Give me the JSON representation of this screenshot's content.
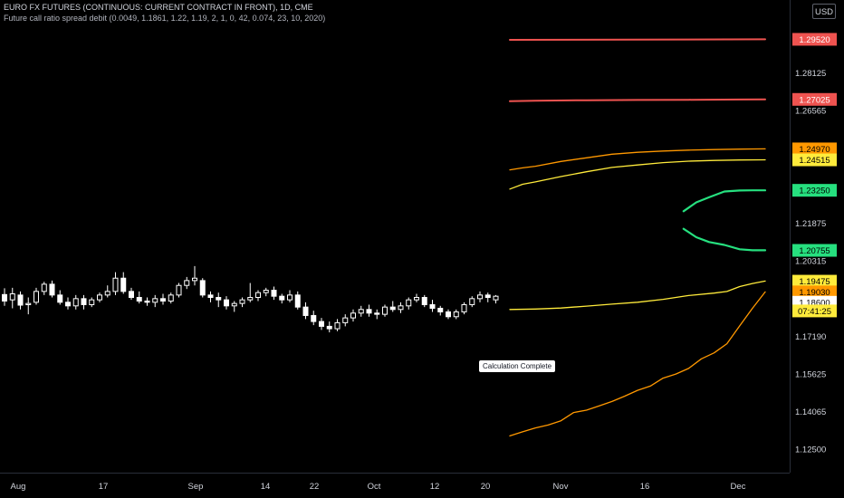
{
  "header": {
    "title": "EURO FX FUTURES (CONTINUOUS: CURRENT CONTRACT IN FRONT), 1D, CME",
    "study": "Future call ratio spread debit (0.0049, 1.1861, 1.22, 1.19, 2, 1, 0, 42, 0.074, 23, 10, 2020)"
  },
  "currency_button": "USD",
  "tooltip": "Calculation Complete",
  "chart_data": {
    "type": "candlestick",
    "ylim": [
      1.1205,
      1.2995
    ],
    "y_ticks": [
      "1.28125",
      "1.26565",
      "1.21875",
      "1.20315",
      "1.17190",
      "1.15625",
      "1.14065",
      "1.12500"
    ],
    "x_ticks": [
      "Aug",
      "17",
      "Sep",
      "14",
      "22",
      "Oct",
      "12",
      "20",
      "Nov",
      "16",
      "Dec"
    ],
    "candles": [
      {
        "o": 1.1892,
        "h": 1.1918,
        "l": 1.1845,
        "c": 1.1865
      },
      {
        "o": 1.187,
        "h": 1.192,
        "l": 1.1835,
        "c": 1.1895
      },
      {
        "o": 1.189,
        "h": 1.1905,
        "l": 1.183,
        "c": 1.1848
      },
      {
        "o": 1.185,
        "h": 1.188,
        "l": 1.181,
        "c": 1.1855
      },
      {
        "o": 1.186,
        "h": 1.192,
        "l": 1.185,
        "c": 1.1905
      },
      {
        "o": 1.1905,
        "h": 1.1945,
        "l": 1.189,
        "c": 1.1935
      },
      {
        "o": 1.1935,
        "h": 1.195,
        "l": 1.188,
        "c": 1.189
      },
      {
        "o": 1.189,
        "h": 1.191,
        "l": 1.185,
        "c": 1.186
      },
      {
        "o": 1.186,
        "h": 1.188,
        "l": 1.183,
        "c": 1.1845
      },
      {
        "o": 1.1845,
        "h": 1.189,
        "l": 1.183,
        "c": 1.1875
      },
      {
        "o": 1.1875,
        "h": 1.189,
        "l": 1.183,
        "c": 1.185
      },
      {
        "o": 1.185,
        "h": 1.188,
        "l": 1.184,
        "c": 1.187
      },
      {
        "o": 1.187,
        "h": 1.19,
        "l": 1.186,
        "c": 1.189
      },
      {
        "o": 1.189,
        "h": 1.193,
        "l": 1.188,
        "c": 1.1905
      },
      {
        "o": 1.1905,
        "h": 1.1985,
        "l": 1.189,
        "c": 1.196
      },
      {
        "o": 1.196,
        "h": 1.1985,
        "l": 1.1895,
        "c": 1.1905
      },
      {
        "o": 1.1905,
        "h": 1.192,
        "l": 1.187,
        "c": 1.188
      },
      {
        "o": 1.188,
        "h": 1.1905,
        "l": 1.1855,
        "c": 1.1865
      },
      {
        "o": 1.1865,
        "h": 1.188,
        "l": 1.1845,
        "c": 1.186
      },
      {
        "o": 1.186,
        "h": 1.189,
        "l": 1.184,
        "c": 1.1875
      },
      {
        "o": 1.1875,
        "h": 1.1895,
        "l": 1.185,
        "c": 1.1865
      },
      {
        "o": 1.1865,
        "h": 1.19,
        "l": 1.1855,
        "c": 1.189
      },
      {
        "o": 1.189,
        "h": 1.194,
        "l": 1.188,
        "c": 1.193
      },
      {
        "o": 1.193,
        "h": 1.1965,
        "l": 1.1915,
        "c": 1.195
      },
      {
        "o": 1.195,
        "h": 1.201,
        "l": 1.193,
        "c": 1.196
      },
      {
        "o": 1.195,
        "h": 1.196,
        "l": 1.188,
        "c": 1.189
      },
      {
        "o": 1.189,
        "h": 1.1905,
        "l": 1.186,
        "c": 1.188
      },
      {
        "o": 1.188,
        "h": 1.19,
        "l": 1.184,
        "c": 1.187
      },
      {
        "o": 1.187,
        "h": 1.1885,
        "l": 1.183,
        "c": 1.1845
      },
      {
        "o": 1.1845,
        "h": 1.1865,
        "l": 1.182,
        "c": 1.1855
      },
      {
        "o": 1.1855,
        "h": 1.188,
        "l": 1.184,
        "c": 1.187
      },
      {
        "o": 1.187,
        "h": 1.194,
        "l": 1.186,
        "c": 1.188
      },
      {
        "o": 1.188,
        "h": 1.191,
        "l": 1.1865,
        "c": 1.19
      },
      {
        "o": 1.19,
        "h": 1.192,
        "l": 1.1885,
        "c": 1.191
      },
      {
        "o": 1.191,
        "h": 1.1925,
        "l": 1.187,
        "c": 1.1885
      },
      {
        "o": 1.1885,
        "h": 1.1895,
        "l": 1.1855,
        "c": 1.187
      },
      {
        "o": 1.187,
        "h": 1.191,
        "l": 1.186,
        "c": 1.189
      },
      {
        "o": 1.189,
        "h": 1.1905,
        "l": 1.183,
        "c": 1.184
      },
      {
        "o": 1.184,
        "h": 1.186,
        "l": 1.179,
        "c": 1.1805
      },
      {
        "o": 1.1805,
        "h": 1.1825,
        "l": 1.1765,
        "c": 1.178
      },
      {
        "o": 1.178,
        "h": 1.1795,
        "l": 1.1745,
        "c": 1.176
      },
      {
        "o": 1.176,
        "h": 1.178,
        "l": 1.1735,
        "c": 1.175
      },
      {
        "o": 1.175,
        "h": 1.179,
        "l": 1.174,
        "c": 1.1775
      },
      {
        "o": 1.1775,
        "h": 1.181,
        "l": 1.176,
        "c": 1.1795
      },
      {
        "o": 1.1795,
        "h": 1.183,
        "l": 1.178,
        "c": 1.1815
      },
      {
        "o": 1.1815,
        "h": 1.1845,
        "l": 1.18,
        "c": 1.183
      },
      {
        "o": 1.183,
        "h": 1.185,
        "l": 1.18,
        "c": 1.1815
      },
      {
        "o": 1.1815,
        "h": 1.183,
        "l": 1.179,
        "c": 1.181
      },
      {
        "o": 1.181,
        "h": 1.185,
        "l": 1.18,
        "c": 1.184
      },
      {
        "o": 1.184,
        "h": 1.1865,
        "l": 1.182,
        "c": 1.183
      },
      {
        "o": 1.183,
        "h": 1.186,
        "l": 1.1815,
        "c": 1.1845
      },
      {
        "o": 1.1845,
        "h": 1.188,
        "l": 1.183,
        "c": 1.187
      },
      {
        "o": 1.187,
        "h": 1.1895,
        "l": 1.186,
        "c": 1.188
      },
      {
        "o": 1.188,
        "h": 1.189,
        "l": 1.184,
        "c": 1.185
      },
      {
        "o": 1.185,
        "h": 1.187,
        "l": 1.182,
        "c": 1.1835
      },
      {
        "o": 1.1835,
        "h": 1.1845,
        "l": 1.1805,
        "c": 1.182
      },
      {
        "o": 1.182,
        "h": 1.183,
        "l": 1.179,
        "c": 1.18
      },
      {
        "o": 1.18,
        "h": 1.183,
        "l": 1.179,
        "c": 1.182
      },
      {
        "o": 1.182,
        "h": 1.186,
        "l": 1.181,
        "c": 1.185
      },
      {
        "o": 1.185,
        "h": 1.1885,
        "l": 1.184,
        "c": 1.1875
      },
      {
        "o": 1.1875,
        "h": 1.1905,
        "l": 1.186,
        "c": 1.189
      },
      {
        "o": 1.189,
        "h": 1.19,
        "l": 1.186,
        "c": 1.188
      },
      {
        "o": 1.187,
        "h": 1.189,
        "l": 1.1855,
        "c": 1.1885
      }
    ],
    "series": [
      {
        "color": "#ef5350",
        "width": 2,
        "label": "1.29520",
        "label_bg": "#ef5350",
        "label_fg": "#ffffff",
        "x": [
          0,
          1
        ],
        "y": [
          1.295,
          1.2952
        ]
      },
      {
        "color": "#ef5350",
        "width": 2,
        "label": "1.27025",
        "label_bg": "#ef5350",
        "label_fg": "#ffffff",
        "x": [
          0,
          0.1,
          0.3,
          0.5,
          0.7,
          0.9,
          1
        ],
        "y": [
          1.2695,
          1.2697,
          1.2699,
          1.27,
          1.2701,
          1.2702,
          1.27025
        ]
      },
      {
        "color": "#ff9800",
        "width": 1.3,
        "label": "1.24970",
        "label_bg": "#ff9800",
        "label_fg": "#000000",
        "x": [
          0,
          0.05,
          0.1,
          0.2,
          0.3,
          0.4,
          0.5,
          0.6,
          0.7,
          0.8,
          0.9,
          1
        ],
        "y": [
          1.241,
          1.2418,
          1.2425,
          1.2445,
          1.246,
          1.2475,
          1.2483,
          1.2488,
          1.2492,
          1.2494,
          1.2496,
          1.2497
        ]
      },
      {
        "color": "#ffeb3b",
        "width": 1.3,
        "label": "1.24515",
        "label_bg": "#ffeb3b",
        "label_fg": "#000000",
        "x": [
          0,
          0.05,
          0.1,
          0.2,
          0.3,
          0.4,
          0.5,
          0.6,
          0.7,
          0.8,
          0.9,
          1
        ],
        "y": [
          1.233,
          1.235,
          1.236,
          1.2382,
          1.2402,
          1.242,
          1.243,
          1.244,
          1.2446,
          1.2449,
          1.2451,
          1.24515
        ]
      },
      {
        "color": "#26e07f",
        "width": 2.2,
        "label": "1.23250",
        "label_bg": "#26e07f",
        "label_fg": "#000000",
        "x": [
          0.68,
          0.73,
          0.78,
          0.84,
          0.9,
          0.95,
          1
        ],
        "y": [
          1.2238,
          1.2275,
          1.2296,
          1.232,
          1.2324,
          1.2325,
          1.2325
        ]
      },
      {
        "color": "#26e07f",
        "width": 2.2,
        "label": "1.20755",
        "label_bg": "#26e07f",
        "label_fg": "#000000",
        "x": [
          0.68,
          0.73,
          0.78,
          0.84,
          0.9,
          0.95,
          1
        ],
        "y": [
          1.2165,
          1.213,
          1.211,
          1.2098,
          1.208,
          1.2076,
          1.2076
        ]
      },
      {
        "color": "#ffeb3b",
        "width": 1.3,
        "label": "1.19475",
        "label_bg": "#ffeb3b",
        "label_fg": "#000000",
        "x": [
          0,
          0.1,
          0.2,
          0.3,
          0.4,
          0.5,
          0.6,
          0.7,
          0.8,
          0.85,
          0.9,
          0.95,
          1
        ],
        "y": [
          1.183,
          1.1832,
          1.1836,
          1.1844,
          1.1852,
          1.186,
          1.1872,
          1.1888,
          1.1898,
          1.1905,
          1.1925,
          1.1938,
          1.1948
        ]
      },
      {
        "color": "#ff9800",
        "width": 1.3,
        "label": "1.19030",
        "label_bg": "#ff9800",
        "label_fg": "#000000",
        "x": [
          0,
          0.05,
          0.1,
          0.15,
          0.2,
          0.25,
          0.3,
          0.35,
          0.4,
          0.45,
          0.5,
          0.55,
          0.6,
          0.65,
          0.7,
          0.75,
          0.8,
          0.85,
          0.9,
          0.95,
          1
        ],
        "y": [
          1.1305,
          1.1322,
          1.1338,
          1.135,
          1.1368,
          1.1402,
          1.1412,
          1.143,
          1.1448,
          1.147,
          1.1494,
          1.1512,
          1.1545,
          1.1562,
          1.1585,
          1.1625,
          1.165,
          1.1688,
          1.1762,
          1.1835,
          1.1903
        ]
      }
    ],
    "extra_labels": [
      {
        "text": "1.18600",
        "value": 1.186,
        "bg": "#ffffff",
        "fg": "#000000"
      },
      {
        "text": "07:41:25",
        "value": 1.1824,
        "bg": "#ffeb3b",
        "fg": "#000000"
      }
    ],
    "colors": {
      "background": "#000000",
      "up": "#ffffff",
      "down": "#ffffff"
    }
  }
}
